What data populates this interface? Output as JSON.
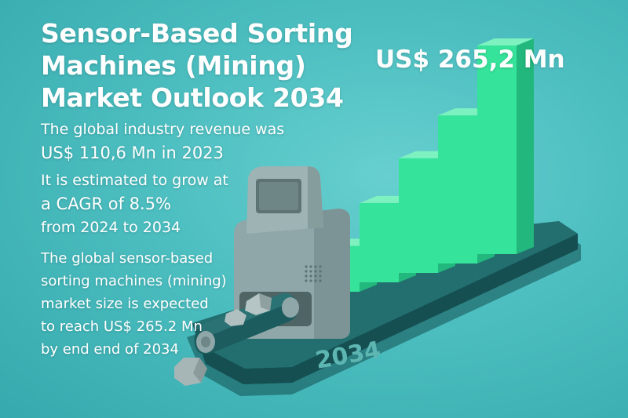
{
  "title_lines": [
    "Sensor-Based Sorting",
    "Machines (Mining)",
    "Market Outlook 2034"
  ],
  "top_value": "US$ 265,2 Mn",
  "revenue": {
    "line1": "The global industry revenue was",
    "line2": "US$ 110,6 Mn in 2023"
  },
  "cagr": {
    "line1": "It is estimated to grow at",
    "line2": "a CAGR of 8.5%",
    "line3": "from 2024 to 2034"
  },
  "forecast_lines": [
    "The global sensor-based",
    "sorting machines (mining)",
    "market size is expected",
    "to reach US$ 265.2 Mn",
    "by end end of 2034"
  ],
  "platform_label": "2034",
  "bar_levels": [
    0.22,
    0.38,
    0.55,
    0.71,
    1.0
  ],
  "colors": {
    "background": "#4cbec0",
    "bar_front": "#36e39a",
    "bar_top": "#7df2c0",
    "bar_side": "#22b77c",
    "platform": "#1f6b6b",
    "machine": "#8fa7a8",
    "text": "#ffffff"
  },
  "icons": [
    "sorting-machine-icon",
    "ore-rock-icon",
    "conveyor-belt-icon",
    "bar-chart-icon"
  ]
}
